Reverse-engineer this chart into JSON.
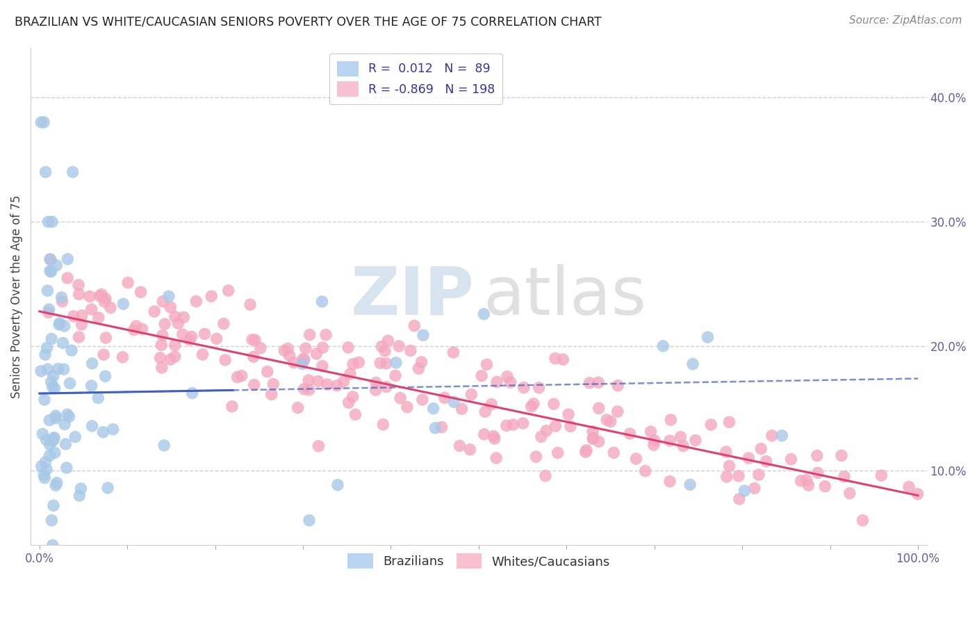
{
  "title": "BRAZILIAN VS WHITE/CAUCASIAN SENIORS POVERTY OVER THE AGE OF 75 CORRELATION CHART",
  "source": "Source: ZipAtlas.com",
  "ylabel": "Seniors Poverty Over the Age of 75",
  "brazil_color": "#a8c8e8",
  "white_color": "#f4a8c0",
  "brazil_line_color": "#4060c0",
  "white_line_color": "#e04070",
  "watermark_zip_color": "#b8cce4",
  "watermark_atlas_color": "#c8c8cc",
  "brazil_R": 0.012,
  "brazil_N": 89,
  "white_R": -0.869,
  "white_N": 198,
  "xlim": [
    0.0,
    1.0
  ],
  "ylim": [
    0.04,
    0.44
  ],
  "yticks": [
    0.1,
    0.2,
    0.3,
    0.4
  ],
  "ytick_labels": [
    "10.0%",
    "20.0%",
    "30.0%",
    "40.0%"
  ],
  "grid_color": "#d0d0d8",
  "bg_color": "#ffffff",
  "title_color": "#222222",
  "source_color": "#888888",
  "tick_color": "#6060a0",
  "legend_label_color": "#3333aa"
}
